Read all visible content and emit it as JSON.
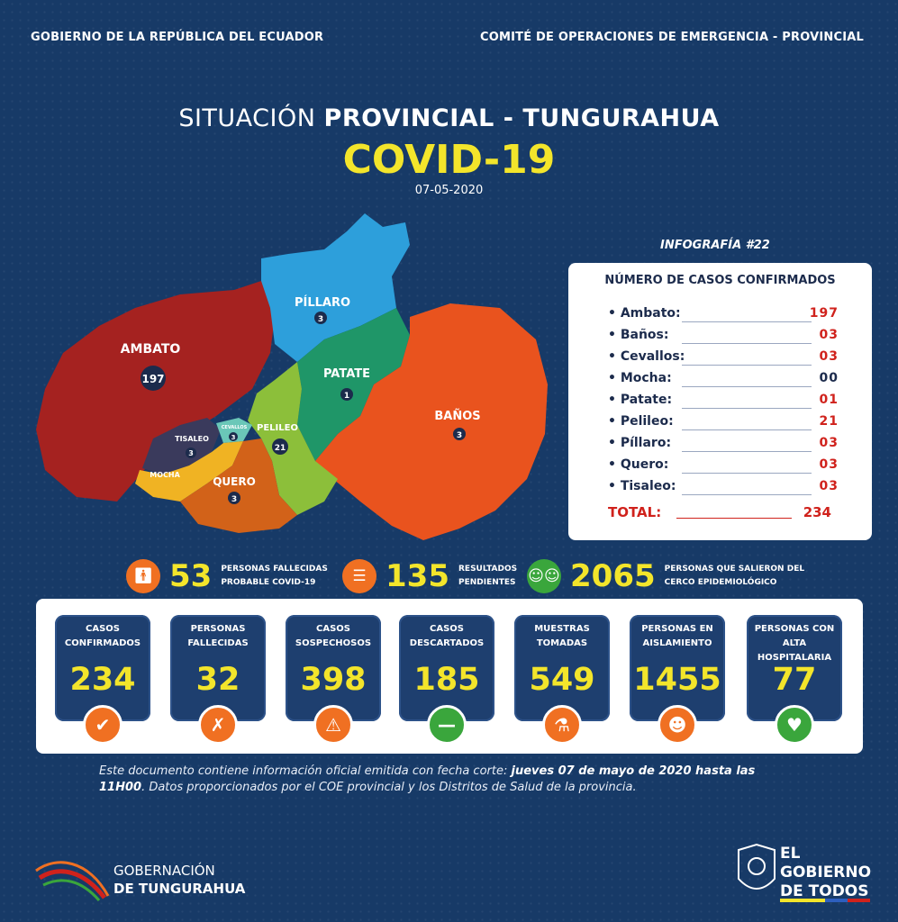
{
  "header": {
    "left": "GOBIERNO DE LA REPÚBLICA DEL ECUADOR",
    "right": "COMITÉ DE OPERACIONES DE EMERGENCIA  - PROVINCIAL"
  },
  "title": {
    "prefix": "SITUACIÓN ",
    "bold": "PROVINCIAL - TUNGURAHUA",
    "main": "COVID-19",
    "date": "07-05-2020"
  },
  "infografia": "INFOGRAFÍA #22",
  "map": {
    "regions": [
      {
        "name": "AMBATO",
        "count": "197",
        "color": "#a52220"
      },
      {
        "name": "PÍLLARO",
        "count": "3",
        "color": "#2d9fdb"
      },
      {
        "name": "PATATE",
        "count": "1",
        "color": "#1f9668"
      },
      {
        "name": "BAÑOS",
        "count": "3",
        "color": "#e9531e"
      },
      {
        "name": "PELILEO",
        "count": "21",
        "color": "#8cbf3a"
      },
      {
        "name": "TISALEO",
        "count": "3",
        "color": "#3a3a5c"
      },
      {
        "name": "CEVALLOS",
        "count": "3",
        "color": "#6ac7b8"
      },
      {
        "name": "MOCHA",
        "count": "",
        "color": "#f0b323"
      },
      {
        "name": "QUERO",
        "count": "3",
        "color": "#d26219"
      }
    ]
  },
  "cases_table": {
    "title": "NÚMERO DE CASOS CONFIRMADOS",
    "rows": [
      {
        "name": "Ambato:",
        "value": "197"
      },
      {
        "name": "Baños:",
        "value": "03"
      },
      {
        "name": "Cevallos:",
        "value": "03"
      },
      {
        "name": "Mocha:",
        "value": "00"
      },
      {
        "name": "Patate:",
        "value": "01"
      },
      {
        "name": "Pelileo:",
        "value": "21"
      },
      {
        "name": "Píllaro:",
        "value": "03"
      },
      {
        "name": "Quero:",
        "value": "03"
      },
      {
        "name": "Tisaleo:",
        "value": "03"
      }
    ],
    "total_label": "TOTAL:",
    "total_value": "234"
  },
  "mid_stats": [
    {
      "number": "53",
      "line1": "PERSONAS FALLECIDAS",
      "line2": "PROBABLE COVID-19",
      "icon": "person-deceased-icon"
    },
    {
      "number": "135",
      "line1": "RESULTADOS",
      "line2": "PENDIENTES",
      "icon": "clipboard-icon"
    },
    {
      "number": "2065",
      "line1": "PERSONAS QUE SALIERON DEL",
      "line2": "CERCO EPIDEMIOLÓGICO",
      "icon": "people-icon"
    }
  ],
  "boxes": [
    {
      "line1": "CASOS",
      "line2": "CONFIRMADOS",
      "number": "234",
      "icon": "confirmed-icon"
    },
    {
      "line1": "PERSONAS",
      "line2": "FALLECIDAS",
      "number": "32",
      "icon": "person-deceased-icon"
    },
    {
      "line1": "CASOS",
      "line2": "SOSPECHOSOS",
      "number": "398",
      "icon": "suspect-icon"
    },
    {
      "line1": "CASOS",
      "line2": "DESCARTADOS",
      "number": "185",
      "icon": "minus-icon"
    },
    {
      "line1": "MUESTRAS",
      "line2": "TOMADAS",
      "number": "549",
      "icon": "microscope-icon"
    },
    {
      "line1": "PERSONAS EN",
      "line2": "AISLAMIENTO",
      "number": "1455",
      "icon": "isolation-people-icon"
    },
    {
      "line1": "PERSONAS CON ALTA",
      "line2": "HOSPITALARIA",
      "number": "77",
      "icon": "heart-pulse-icon"
    }
  ],
  "disclaimer": {
    "part1": "Este documento contiene información oficial emitida con fecha corte: ",
    "bold": "jueves 07 de mayo de 2020 hasta las 11H00",
    "part2": ". Datos proporcionados por el COE provincial y los Distritos de Salud de la provincia."
  },
  "footer": {
    "left_line1": "GOBERNACIÓN",
    "left_line2": "DE TUNGURAHUA",
    "right_line1": "EL",
    "right_line2": "GOBIERNO",
    "right_line3": "DE TODOS"
  }
}
